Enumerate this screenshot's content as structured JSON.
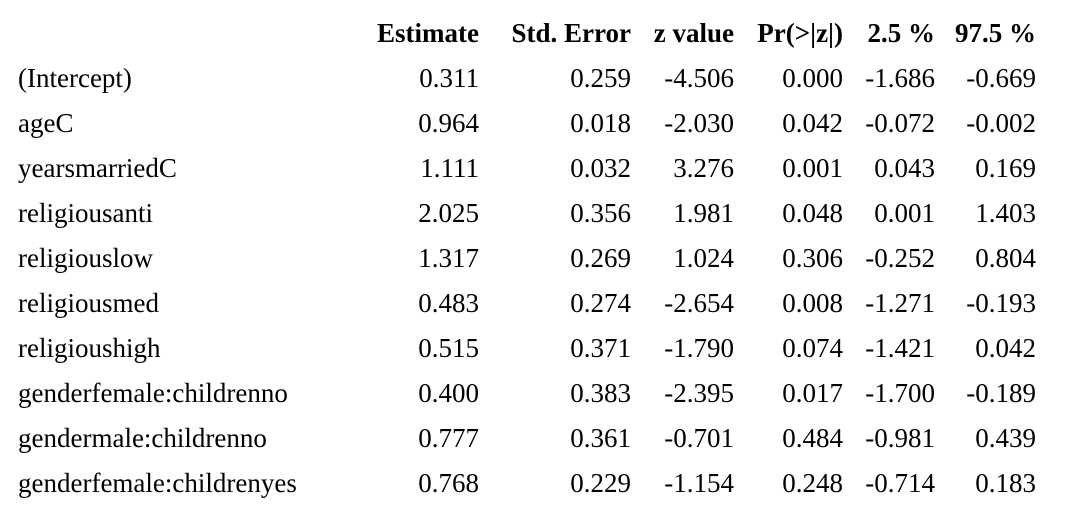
{
  "table": {
    "columns": [
      "Estimate",
      "Std. Error",
      "z value",
      "Pr(>|z|)",
      "2.5 %",
      "97.5 %"
    ],
    "rows": [
      {
        "label": "(Intercept)",
        "values": [
          "0.311",
          "0.259",
          "-4.506",
          "0.000",
          "-1.686",
          "-0.669"
        ]
      },
      {
        "label": "ageC",
        "values": [
          "0.964",
          "0.018",
          "-2.030",
          "0.042",
          "-0.072",
          "-0.002"
        ]
      },
      {
        "label": "yearsmarriedC",
        "values": [
          "1.111",
          "0.032",
          "3.276",
          "0.001",
          "0.043",
          "0.169"
        ]
      },
      {
        "label": "religiousanti",
        "values": [
          "2.025",
          "0.356",
          "1.981",
          "0.048",
          "0.001",
          "1.403"
        ]
      },
      {
        "label": "religiouslow",
        "values": [
          "1.317",
          "0.269",
          "1.024",
          "0.306",
          "-0.252",
          "0.804"
        ]
      },
      {
        "label": "religiousmed",
        "values": [
          "0.483",
          "0.274",
          "-2.654",
          "0.008",
          "-1.271",
          "-0.193"
        ]
      },
      {
        "label": "religioushigh",
        "values": [
          "0.515",
          "0.371",
          "-1.790",
          "0.074",
          "-1.421",
          "0.042"
        ]
      },
      {
        "label": "genderfemale:childrenno",
        "values": [
          "0.400",
          "0.383",
          "-2.395",
          "0.017",
          "-1.700",
          "-0.189"
        ]
      },
      {
        "label": "gendermale:childrenno",
        "values": [
          "0.777",
          "0.361",
          "-0.701",
          "0.484",
          "-0.981",
          "0.439"
        ]
      },
      {
        "label": "genderfemale:childrenyes",
        "values": [
          "0.768",
          "0.229",
          "-1.154",
          "0.248",
          "-0.714",
          "0.183"
        ]
      }
    ]
  }
}
